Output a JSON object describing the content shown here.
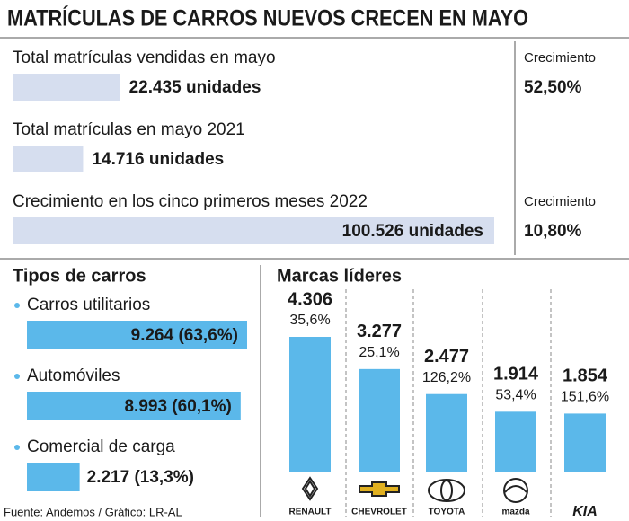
{
  "title": "MATRÍCULAS DE CARROS NUEVOS CRECEN EN MAYO",
  "source": "Fuente: Andemos / Gráfico: LR-AL",
  "chart_data": [
    {
      "type": "hbar-summary",
      "categories": [
        "Total matrículas vendidas en mayo",
        "Total matrículas en mayo 2021",
        "Crecimiento en los cinco primeros meses 2022"
      ],
      "values": [
        22435,
        14716,
        100526
      ],
      "value_labels": [
        "22.435 unidades",
        "14.716 unidades",
        "100.526 unidades"
      ],
      "color": "#d6deef",
      "growth_title": "Crecimiento",
      "growth_labels": [
        "52,50%",
        null,
        "10,80%"
      ]
    },
    {
      "type": "hbar-list",
      "title": "Tipos de carros",
      "categories": [
        "Carros utilitarios",
        "Automóviles",
        "Comercial de carga"
      ],
      "values": [
        9264,
        8993,
        2217
      ],
      "value_labels": [
        "9.264 (63,6%)",
        "8.993 (60,1%)",
        "2.217 (13,3%)"
      ],
      "color": "#5bb8ea"
    },
    {
      "type": "bar",
      "title": "Marcas líderes",
      "categories": [
        "RENAULT",
        "CHEVROLET",
        "TOYOTA",
        "mazda",
        "KIA"
      ],
      "values": [
        4306,
        3277,
        2477,
        1914,
        1854
      ],
      "value_labels": [
        "4.306",
        "3.277",
        "2.477",
        "1.914",
        "1.854"
      ],
      "growth_labels": [
        "35,6%",
        "25,1%",
        "126,2%",
        "53,4%",
        "151,6%"
      ],
      "color": "#5bb8ea"
    }
  ]
}
